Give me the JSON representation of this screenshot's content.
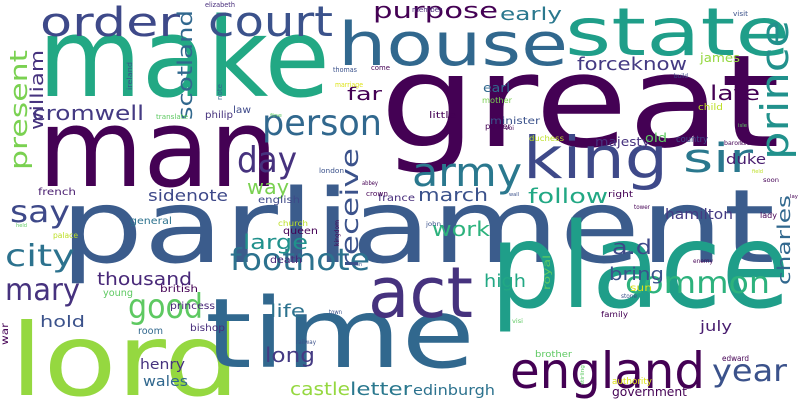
{
  "words": [
    {
      "text": "parliament",
      "color": "#3b5c8c"
    },
    {
      "text": "great",
      "color": "#440154"
    },
    {
      "text": "make",
      "color": "#22a884"
    },
    {
      "text": "man",
      "color": "#440154"
    },
    {
      "text": "place",
      "color": "#1f9e89"
    },
    {
      "text": "lord",
      "color": "#95d840"
    },
    {
      "text": "time",
      "color": "#31688e"
    },
    {
      "text": "state",
      "color": "#1f9e89"
    },
    {
      "text": "house",
      "color": "#31688e"
    },
    {
      "text": "king",
      "color": "#3e4989"
    },
    {
      "text": "act",
      "color": "#46327e"
    },
    {
      "text": "court",
      "color": "#3b528b"
    },
    {
      "text": "england",
      "color": "#440154"
    },
    {
      "text": "army",
      "color": "#2a788e"
    },
    {
      "text": "sir",
      "color": "#2a788e"
    },
    {
      "text": "prince",
      "color": "#21918c"
    },
    {
      "text": "order",
      "color": "#3e4989"
    },
    {
      "text": "person",
      "color": "#31688e"
    },
    {
      "text": "day",
      "color": "#46327e"
    },
    {
      "text": "footnote",
      "color": "#2c728e"
    },
    {
      "text": "good",
      "color": "#5ec962"
    },
    {
      "text": "common",
      "color": "#2db27d"
    },
    {
      "text": "say",
      "color": "#3e4989"
    },
    {
      "text": "city",
      "color": "#2c728e"
    },
    {
      "text": "mary",
      "color": "#46327e"
    },
    {
      "text": "year",
      "color": "#3b528b"
    },
    {
      "text": "receive",
      "color": "#3b528b"
    },
    {
      "text": "present",
      "color": "#7ad151"
    },
    {
      "text": "purpose",
      "color": "#440154"
    },
    {
      "text": "scotland",
      "color": "#31688e"
    },
    {
      "text": "cromwell",
      "color": "#443a83"
    },
    {
      "text": "large",
      "color": "#21918c"
    },
    {
      "text": "way",
      "color": "#7ad151"
    },
    {
      "text": "work",
      "color": "#2db27d"
    },
    {
      "text": "follow",
      "color": "#22a884"
    },
    {
      "text": "march",
      "color": "#3b528b"
    },
    {
      "text": "thousand",
      "color": "#482878"
    },
    {
      "text": "charles",
      "color": "#31688e"
    },
    {
      "text": "late",
      "color": "#440154"
    },
    {
      "text": "forceknow",
      "color": "#443a83"
    },
    {
      "text": "early",
      "color": "#2a788e"
    },
    {
      "text": "william",
      "color": "#46327e"
    },
    {
      "text": "far",
      "color": "#440154"
    },
    {
      "text": "sidenote",
      "color": "#3e4989"
    },
    {
      "text": "long",
      "color": "#443a83"
    },
    {
      "text": "castle",
      "color": "#95d840"
    },
    {
      "text": "letter",
      "color": "#2a788e"
    },
    {
      "text": "a.d",
      "color": "#3e4989"
    },
    {
      "text": "bring",
      "color": "#3b528b"
    },
    {
      "text": "high",
      "color": "#22a884"
    },
    {
      "text": "life",
      "color": "#2c728e"
    },
    {
      "text": "hold",
      "color": "#3b528b"
    },
    {
      "text": "edinburgh",
      "color": "#2c728e"
    },
    {
      "text": "hamilton",
      "color": "#443a83"
    },
    {
      "text": "july",
      "color": "#481d6f"
    },
    {
      "text": "duke",
      "color": "#481d6f"
    },
    {
      "text": "henry",
      "color": "#46327e"
    },
    {
      "text": "wales",
      "color": "#31688e"
    },
    {
      "text": "government",
      "color": "#440154"
    },
    {
      "text": "james",
      "color": "#95d840"
    },
    {
      "text": "majesty",
      "color": "#46327e"
    },
    {
      "text": "earl",
      "color": "#31688e"
    },
    {
      "text": "minister",
      "color": "#3b528b"
    },
    {
      "text": "sun",
      "color": "#dde318"
    },
    {
      "text": "old",
      "color": "#5ec962"
    },
    {
      "text": "general",
      "color": "#2c728e"
    },
    {
      "text": "death",
      "color": "#482878"
    },
    {
      "text": "queen",
      "color": "#440154"
    },
    {
      "text": "royal",
      "color": "#5ec962"
    },
    {
      "text": "english",
      "color": "#3e4989"
    },
    {
      "text": "france",
      "color": "#472d7b"
    },
    {
      "text": "french",
      "color": "#481d6f"
    },
    {
      "text": "british",
      "color": "#440154"
    },
    {
      "text": "young",
      "color": "#5ec962"
    },
    {
      "text": "princess",
      "color": "#482878"
    },
    {
      "text": "bishop",
      "color": "#472d7b"
    },
    {
      "text": "room",
      "color": "#31688e"
    },
    {
      "text": "war",
      "color": "#440154"
    },
    {
      "text": "law",
      "color": "#3e4989"
    },
    {
      "text": "philip",
      "color": "#46327e"
    },
    {
      "text": "child",
      "color": "#bddf26"
    },
    {
      "text": "country",
      "color": "#3e4989"
    },
    {
      "text": "little",
      "color": "#440154"
    },
    {
      "text": "power",
      "color": "#440154"
    },
    {
      "text": "duchess",
      "color": "#bddf26"
    },
    {
      "text": "right",
      "color": "#440154"
    },
    {
      "text": "brother",
      "color": "#5ec962"
    },
    {
      "text": "authority",
      "color": "#dde318"
    },
    {
      "text": "edward",
      "color": "#440154"
    },
    {
      "text": "family",
      "color": "#440154"
    },
    {
      "text": "lady",
      "color": "#440154"
    },
    {
      "text": "mother",
      "color": "#7ad151"
    },
    {
      "text": "palace",
      "color": "#bddf26"
    },
    {
      "text": "church",
      "color": "#bddf26"
    },
    {
      "text": "london",
      "color": "#3b528b"
    },
    {
      "text": "crown",
      "color": "#440154"
    },
    {
      "text": "member",
      "color": "#482878"
    },
    {
      "text": "elizabeth",
      "color": "#472d7b"
    },
    {
      "text": "thomas",
      "color": "#3b528b"
    },
    {
      "text": "marriage",
      "color": "#dde318"
    },
    {
      "text": "come",
      "color": "#440154"
    },
    {
      "text": "ireland",
      "color": "#3b528b"
    },
    {
      "text": "note",
      "color": "#31688e"
    },
    {
      "text": "translate",
      "color": "#5ec962"
    },
    {
      "text": "visit",
      "color": "#3b528b"
    },
    {
      "text": "build",
      "color": "#3e4989"
    },
    {
      "text": "baron",
      "color": "#440154"
    },
    {
      "text": "soon",
      "color": "#440154"
    },
    {
      "text": "tower",
      "color": "#440154"
    },
    {
      "text": "enemy",
      "color": "#440154"
    },
    {
      "text": "stone",
      "color": "#3b528b"
    },
    {
      "text": "john",
      "color": "#3b528b"
    },
    {
      "text": "kingdom",
      "color": "#440154"
    },
    {
      "text": "abbey",
      "color": "#440154"
    },
    {
      "text": "railway",
      "color": "#3b528b"
    },
    {
      "text": "town",
      "color": "#3b528b"
    },
    {
      "text": "field",
      "color": "#bddf26"
    },
    {
      "text": "wall",
      "color": "#3b528b"
    },
    {
      "text": "voi",
      "color": "#440154"
    },
    {
      "text": "fine",
      "color": "#5ec962"
    },
    {
      "text": "idle",
      "color": "#440154"
    },
    {
      "text": "held",
      "color": "#5ec962"
    },
    {
      "text": "don",
      "color": "#3b528b"
    },
    {
      "text": "isle",
      "color": "#5ec962"
    },
    {
      "text": "stirling",
      "color": "#5ec962"
    },
    {
      "text": "visi",
      "color": "#5ec962"
    },
    {
      "text": "lay",
      "color": "#440154"
    }
  ]
}
